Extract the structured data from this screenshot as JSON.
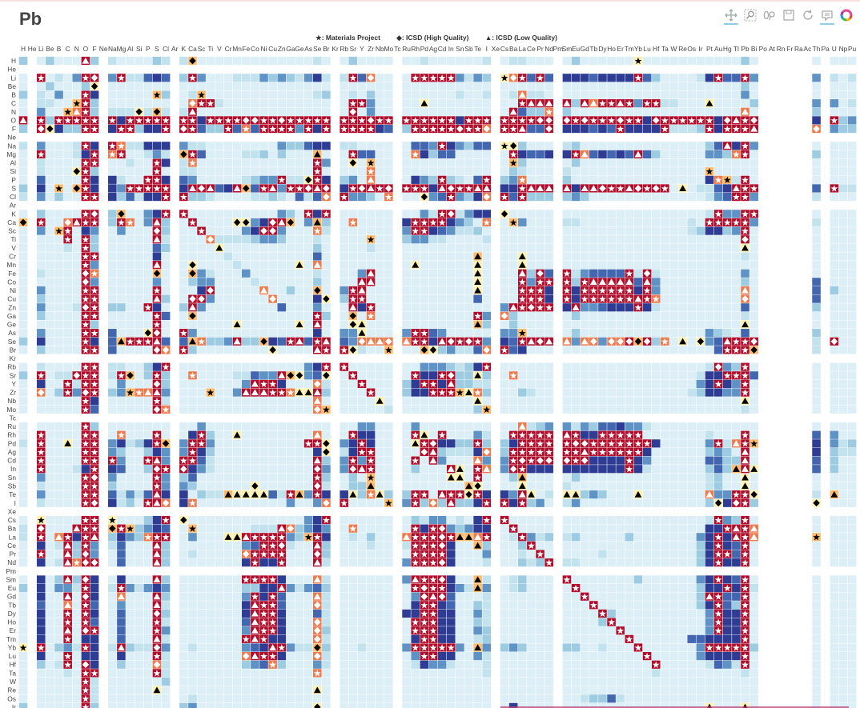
{
  "title": "Pb",
  "legend": [
    {
      "symbol": "★",
      "label": ": Materials Project"
    },
    {
      "symbol": "◆",
      "label": ": ICSD (High Quality)"
    },
    {
      "symbol": "▲",
      "label": ": ICSD (Low Quality)"
    }
  ],
  "toolbar": [
    {
      "icon": "pan-icon",
      "active": true
    },
    {
      "icon": "box-zoom-icon",
      "active": false
    },
    {
      "icon": "wheel-zoom-icon",
      "active": false
    },
    {
      "icon": "save-icon",
      "active": false
    },
    {
      "icon": "reset-icon",
      "active": false
    },
    {
      "icon": "hover-icon",
      "active": true
    },
    {
      "icon": "bokeh-logo-icon",
      "active": false
    }
  ],
  "chart_data": {
    "type": "heatmap",
    "title": "Pb",
    "x_labels": [
      "H",
      "He",
      "Li",
      "Be",
      "B",
      "C",
      "N",
      "O",
      "F",
      "Ne",
      "Na",
      "Mg",
      "Al",
      "Si",
      "P",
      "S",
      "Cl",
      "Ar",
      "K",
      "Ca",
      "Sc",
      "Ti",
      "V",
      "Cr",
      "Mn",
      "Fe",
      "Co",
      "Ni",
      "Cu",
      "Zn",
      "Ga",
      "Ge",
      "As",
      "Se",
      "Br",
      "Kr",
      "Rb",
      "Sr",
      "Y",
      "Zr",
      "Nb",
      "Mo",
      "Tc",
      "Ru",
      "Rh",
      "Pd",
      "Ag",
      "Cd",
      "In",
      "Sn",
      "Sb",
      "Te",
      "I",
      "Xe",
      "Cs",
      "Ba",
      "La",
      "Ce",
      "Pr",
      "Nd",
      "Pm",
      "Sm",
      "Eu",
      "Gd",
      "Tb",
      "Dy",
      "Ho",
      "Er",
      "Tm",
      "Yb",
      "Lu",
      "Hf",
      "Ta",
      "W",
      "Re",
      "Os",
      "Ir",
      "Pt",
      "Au",
      "Hg",
      "Tl",
      "Pb",
      "Bi",
      "Po",
      "At",
      "Rn",
      "Fr",
      "Ra",
      "Ac",
      "Th",
      "Pa",
      "U",
      "Np",
      "Pu"
    ],
    "rows": [
      {
        "label": "H",
        "cells": "c.acaaaTc. baaaacb.bX aaaaaaaaaa aaaba.acaa aa.aabaaaa aab.abbaaa .acaaaaaak aaaaaaaaaa aca......a .aaa"
      },
      {
        "label": "He",
        "cells": ""
      },
      {
        "label": "Li",
        "cells": "a.SabadSD. dSbbefe.cS daaabbbdcd cbdfb.bSep aa.aSSSSSd bdc.kpSeSe .fffeffffS ecaaaabfSe eSd......d .bab"
      },
      {
        "label": "Be",
        "cells": "a.acaaacx. aaaaaaa.aa aaaaaaaaaa aaaaa.aaaa aa.aaaaaaa aaa.aaaaaa .aaaaaaaaa aaaaaaaaaa aca......a .aaa"
      },
      {
        "label": "B",
        "cells": "c.badaaSf. aaaaaKc.ab Kaaaaaaaaa aaabc.abac aa.aaaaaab aab.abqbba .aaaaaaaaa aaaaaaaaaa ada......a .aaa"
      },
      {
        "label": "C",
        "cells": "a.bbaaKSc. aaaaaaa.ap SSbaaaaaaa aaaaa.aSSd aa.aayaaaa aaa.aaSTTT .TcTqSSTSd SSbbaaayaa aac......d .dab"
      },
      {
        "label": "N",
        "cells": "a.daaKqSc. bbbxbXb.bT aaaaaaaaaa aaaaa.aDad aa.aaaaaaa aaa.aTecco .caaaaaaaa aaaaaaaaaa aqa......c .aaa"
      },
      {
        "label": "O",
        "cells": "T.ScSSSSS. SfSSSSS.SS fSSSSDDSSD SSSSS.SSSD SS.SSSSSSf SSS.SSSSDD .DSDSSSDSS fDSSSSSSfD TSD......f .Scd"
      },
      {
        "label": "F",
        "cells": "c.DxfccSS. fSScffS.DS eccSeoeSSS SdSfS.SSSS fe.cSSSSSD SSp.SSTeeD .fffefeSff ffSbbbcSfS SST......p .dcc"
      },
      {
        "label": "Ne",
        "cells": ""
      },
      {
        "label": "Na",
        "cells": "b.daaabSf. Sobbfff.db baaaaaaaad cceff.bbaa aa.aeedSfd cee.kxcaaa .bcaaaaaaa aaaaaaaceT fSd......a .aaa"
      },
      {
        "label": "Mg",
        "cells": "a.SaaabfS. oSaabdb.XS eaaaabbcac aaaYa.aSee aa.aofceea aaa.aSfeef .fSqefefeT ecaaaaaddc oSa......c .aaa"
      },
      {
        "label": "Al",
        "cells": "a.baaaaSS. aabaaSf.bo aaaaaaaaaa aaaSd.axaK aa.aaaaaaa aaa.aKcaaa .acaaaaaaa aaaaaaaaaa aaa......a .aaa"
      },
      {
        "label": "Si",
        "cells": "a.baaaxSc. aaaaaSa.bb aaaaaaaaaa aaaSa.aaao aa.aaaaaaa aaa.acbaaa .baaaaaaaa aaaaaaaKaa aaa......a .aaa"
      },
      {
        "label": "P",
        "cells": "a.eaaaaSf. fbaaSSf.ed aaaaabcddS bbxSf.cdaq aa.afdcScb aeS.cdoaaa .caaaaaaaa aaaaaaafoK bSa......a .aaa"
      },
      {
        "label": "S",
        "cells": "c.faKaXSf. fdSSSSS.fT DTefTXeSTd SSDTD.fSDT SD.SSSfTDS STT.ffSTTT .TfTTDSSTD SDSayabbef TSS......e .Sbb"
      },
      {
        "label": "Cl",
        "cells": "b.dacaaSS. fcebffS.Sc cbaaaabbcb aebep.Sddc ao.aaxdeSd cfp.SeSccc .cdcaaaaaa aaaaaaabde SSd......b .aaa"
      },
      {
        "label": "Ar",
        "cells": ""
      },
      {
        "label": "K",
        "cells": "a.caaaaSD. cXaadfS.Sa aaaaaaaaad caSfS.aaaa aa.aadbSDb dff.xaaaaa .aaaaaaaaa aaaaaaabSd dSS......a .aaa"
      },
      {
        "label": "Ca",
        "cells": "X.SaapTSS. cSoadTc.aS aaaaxxdfDT XadYc.aoaa aa.fSSSSfd cao.aKdaaa .bbaaaaaaa aaaaabaSSS SSd......b .aaa"
      },
      {
        "label": "Sc",
        "cells": "a.daKSafd. adaaaDc.aa SaaaadfDDd aaaob.aaaa aa.dSSfedb bca.aaaaaa .aaaaaaaaa aaaaabcffc dSa......a .aaa"
      },
      {
        "label": "Ti",
        "cells": "a.aaaSaSc. aaaaaTb.aa apbbbbcddc aaaba.aaaK aa.cddbbaa aab.aaaaaa .aaaaaaaaa aaaaaaaaaa aDa......a .aaa"
      },
      {
        "label": "V",
        "cells": "a.aaabaSc. aaaaaec.aa aayaaaaaaa aaaca.aaab aa.aaaaaaa aaa.aaaaaa .aaaaaaaaa aaaaaaaaaa aya......a .aaa"
      },
      {
        "label": "Cr",
        "cells": "a.aaaaaSS. aaaaafa.aa aaabaaaaaa aaaea.aaaa aa.aaaaaaa aYa.aayaaa .aaaaaaaaa aaaaaaaaaa aba......a .aaa"
      },
      {
        "label": "Mn",
        "cells": "a.aaaaaSd. aaaaaTa.ax aaaabaaaaa ayaqa.aaaa aa.ayaaaaa aya.aayaaa .aaaaaaaaa aaaaaaaaaa aaa......a .aaa"
      },
      {
        "label": "Fe",
        "cells": "a.baaaaDo. aaaaaXa.aX dbaaadaaaa aaaba.aadT aa.aaaaaaa aya.aaTcDe .SbdeeeeSb Dbaaaaaaaa ada......a .aaa"
      },
      {
        "label": "Co",
        "cells": "a.aaaaaDd. aaaaada.ac ddaaaabaaa aaaca.aaTT aa.aaaaaaa aya.aaSdSS .ScSTTTTTe Tdaaaaaaaa aca......e .aaa"
      },
      {
        "label": "Ni",
        "cells": "a.daaaaSS. aaaaaSa.aa fDaaaaaqaa caaXa.dSTa aa.aaaaaaa aya.aaSSSf .SfSSSSSSf Sdaaaaaaaa aqa......e .caa"
      },
      {
        "label": "Cu",
        "cells": "a.caaaaSS. aaaaaTc.aD Ddaaaaaapa aaafx.cSSa aa.aaaaaaa aea.aaSSSf .SfSSSSSST Soaaaaaaaa apa......e .aaa"
      },
      {
        "label": "Zn",
        "cells": "a.daaabDS. ccaaSfa.cT daaaaaaaae aaada.aTfS aa.aaaaaaa aaa.dTSDSS .fTddefffS fbaaaaaaaa aea......c .aaa"
      },
      {
        "label": "Ga",
        "cells": "a.caaaaSS. aaaaaSe.aX aaaaaaaaaa aaaSc.aXao aa.aaaaaaa aSd.pcaaaa .acaaaaaaa aaaaaaaaaa aba......a .aaa"
      },
      {
        "label": "Ge",
        "cells": "a.aaaaaSc. aaaaaSa.aa aaaayaaaaa ayaTa.axya aa.aaaaaaa aYc.acaaaa .aaaaaaaaa aaaaaaaaaa aya......a .aaa"
      },
      {
        "label": "As",
        "cells": "a.daaaaSS. eaaaxDa.Sd aaaaaaaaaa aaafa.ddya aa.dSSedaa aaa.ddKaaa .acaaaaaaa aaaaaaadcb aea......c .aaa"
      },
      {
        "label": "Se",
        "cells": "c.faaaaSf. eYSSSTe.eY occdTccXfe STeST.edpq qp.qSSfTDS DSd.feSTDT .qdqpdppDX DcoayaxdeT SSD......b .Daa"
      },
      {
        "label": "Br",
        "cells": "a.caaaaSS. eaaaaDp.Sc aaaaaaaaxa aaaTS.Sxba aK.aaXxcdb bep.Sefaaa .aaaaaaaaa aaaaaaaaeS SSX......b .aaa"
      },
      {
        "label": "Kr",
        "cells": ""
      },
      {
        "label": "Rb",
        "cells": "a.baaaaSS. bbaacfS.aa aaaaaaaaaa aadfS.Saaa aa.aadddcb cfS.aaaaaa .aaaaaaaaa aaaaaaabDd cSa......a .aaa"
      },
      {
        "label": "Sr",
        "cells": "c.SabbDSS. bSXacSc.ao aaaabbeddT Xxdex.aSaa aa.aSffSDc cyc.aoaaaa .aaaaaaaaa aaaaaabffS SSe......a .aaa"
      },
      {
        "label": "Y",
        "cells": "a.faaSbSS. adaaaDc.aa aaaaadTSSf aaapb.aaSa aa.cfSSfTc cbb.aaaaaa .aaaaaaaaa aaaaaadfSf dSa......a .aaa"
      },
      {
        "label": "Zr",
        "cells": "a.pacSdDS. cdKoqTd.aa aKaadTTTSS oyyTc.aaaS aa.cffSSSK yoc.aacbaa .aaaaaaaaa aaaaabcffd dSa......a .aaa"
      },
      {
        "label": "Nb",
        "cells": "a.aaaaaSf. aaaaaSb.aa aaaaaaaaaa aaaqa.aaaa ya.aaaaaaa aya.aaaaaa .aaaaaaaaa aaaaaaaaaa aya......a .aaa"
      },
      {
        "label": "Mo",
        "cells": "a.aaaaaSe. aaaaaDo.aa aaaaaaaaaa aaapK.aaaa ab.aaaaaaa acK.aaaaaa .aaaaaaaaa aaaaaaaaaa aba......a .aaa"
      },
      {
        "label": "Tc",
        "cells": ""
      },
      {
        "label": "Ru",
        "cells": "a.aaaaaSc. aaaaaaa.aa daaaaaaaaa aaaaa.aadd aa.adaaaaa aaa.aaqbcd .dbdceefdd baaaaaaaaa aaa......a .aaa"
      },
      {
        "label": "Rh",
        "cells": "a.SaaaaSS. aoaaaSa.af Scaayaaaaa aaaqa.aSff aa.aSyaSaa adb.aSSSSS .TSffSSSSS aaaaaaabaa aSa......e .daa"
      },
      {
        "label": "Pd",
        "cells": "b.SaayaSS. dfbcfSX.dS Sdaaaaaaaa aaSSx.dfSf aa.aySDffc cSc.cfSSSS .SDDSSSSSS SfaaaaadSb qSK......f .dbc"
      },
      {
        "label": "Ag",
        "cells": "a.SaaaaSS. dcaacfd.dS fcaaaaaaaa aaafx.bfSS aa.aaDTcbb bfp.cSSSSS .SSTSSSSSS faaaaaacdc aTa......f .cbb"
      },
      {
        "label": "Cd",
        "cells": "a.SaaaaSS. SdaaSTd.SS ebaaaaaaaa aaaTc.dSdS aa.aSaTdaa aqd.dSDSDD .DSDffffSf daaaaaaeec cTa......e .caa"
      },
      {
        "label": "In",
        "cells": "a.SaaabfS. feaacDS.Df dbaaaaaaaa aaaDd.dDTS aa.acaaaTy aSq.dDSfff .fffffffSf baaaaaacec YTy......e .caa"
      },
      {
        "label": "Sn",
        "cells": "a.daaaaSD. daaaaSd.ce aaaaaaaaaa aaaSc.acaK aa.aaaaayy aSa.acYaaa .acaaaaaaa aaaaaaabca aya......a .aaa"
      },
      {
        "label": "Sb",
        "cells": "a.baaaaSS. caaaaSd.dc aaaaaaxaaa aaaDb.accY aa.aaaaaaa Yxa.aayaaa .baaaaaaaa aaaaaaabca aya......a .aaa"
      },
      {
        "label": "Te",
        "cells": "a.daaaaSS. ebdbeTf.fa cbbYyyyyeb SYdSf.fyco yc.cSSaTSS xSf.fdTyab .yycdcaaay aaaaaaaqdd SSx......b .Yaa"
      },
      {
        "label": "I",
        "cells": "a.baaaaSD. fbcaSTp.fo aaaaaaaaaa daadp.Saaa aK.dScpcTc cfS.SfScda .bdaaaaaaa aaaaaaacxf DSc......x .aaa"
      },
      {
        "label": "Xe",
        "cells": ""
      },
      {
        "label": "Cs",
        "cells": "a.kaaaaSS. kaaacfS.xa aaaaaaaaaa aadfS.aaaa aa.acbddab afS.Saaaaa .aaaaaaaaa aaaaaaabSd cSa......a .aaa"
      },
      {
        "label": "Ba",
        "cells": "b.DaaaTSS. XSKcdfe.aK aaaaaabbbT pcdfd.aoaa aa.aSfSDdc dff.aSaaaa .aaaaaaaaa aaaaaaaffS TSq......a .aaa"
      },
      {
        "label": "La",
        "cells": "b.SaqSfST. cfdcoSS.ad aaayyTSSSS dcKSf.abac aa.qSSSDSY YqS.abSdbc .bcaaaaaca aaaaaadfSf TSq......K .aaa"
      },
      {
        "label": "Ce",
        "cells": "a.fabTcSd. beaaaTc.aa aaaaadeSSD baaTc.aaab aa.bSSSDfa aYc.aacSaa .aaaaaaaaa aaaaaacfSf eSa......a .aaa"
      },
      {
        "label": "Pr",
        "cells": "a.SaaTcDd. aeaaaTc.ab aaaaapSSSS aaaDc.aaaa aa.aSSSSfa aad.aabaSa .aaaabaaaa aaaaaacfSS eSa......a .aaa"
      },
      {
        "label": "Nd",
        "cells": "a.fabToDD. aeaaaTc.aa aaaaafSffS aaaTb.aaaa aa.dSSSDfa aab.aacbcS .bbaaaaaaa aaaaaacfSf fSa......a .aaa"
      },
      {
        "label": "Pm",
        "cells": ""
      },
      {
        "label": "Sm",
        "cells": "a.facTcDf. afaaaTc.aa aaaaaSSSSf aaaqb.aaaa aa.dTSSDfa aYb.abcaaa .Saaaaaaac aaaaaadfSf eSa......a .aaa"
      },
      {
        "label": "Eu",
        "cells": "c.faddbSf. bSdbdfd.aa aaaaaccffT dbdec.aaaa aa.aSDSSfd bYd.abcaaa .aSaaaaaaa aaaaaacffS fSb......a .aaa"
      },
      {
        "label": "Gd",
        "cells": "a.faaTaDf. aqaaaTc.aa aaaaadSfSe aaaqb.aaaa aa.adDTDea aab.aaaaaa .aaSaaaaaa aaaaaacTSe eSa......a .aaa"
      },
      {
        "label": "Tb",
        "cells": "a.eaaqaSe. adaaaTb.aa aaaaafTSSe aaapb.aaaa aa.afSSfea acb.aaaaaa .aaaSaaaaa aaaaaacfSe cSa......a .aaa"
      },
      {
        "label": "Dy",
        "cells": "a.faaSaSf. aeaaaDc.aa aaaaafTSSf aaaeb.aaaa aa.ffSSffa adb.aaaaaa .aaaaScaaa aaaaaaadSf fSa......a .aaa"
      },
      {
        "label": "Ho",
        "cells": "a.faaSaSe. aeaaaSb.aa aaaaaeTSSf aaapb.aaaa aa.aSSSffa acb.aaaaaa .aaaacSaaa aaaaaaadSf fSa......a .aaa"
      },
      {
        "label": "Er",
        "cells": "a.faaTaDS. aeaaaSd.aa aaaaadTSSf aaapc.aaaa aa.aSSSffa adc.aaaaaa .aaaaaaSaa aaaaaaadSf fSa......a .aaa"
      },
      {
        "label": "Tm",
        "cells": "a.faaSaff. aeaaaTb.aa aaaaaSTSff aaapb.aaaa aa.afSSffa abc.aaaaaa .aaaaaaaSa aaaaaeefff fSa......a .aaa"
      },
      {
        "label": "Yb",
        "cells": "k.SacdbSf. bTcbbDd.ab aaaaadefTS dbbXc.aaba aa.dSSSSSd aYd.cdcaaa .ccaabaaaS aaaaaadSSS SSc......a .aaa"
      },
      {
        "label": "Lu",
        "cells": "a.faaSaff. afaaaSb.aa aaaaapTSSf aaapb.aaaa aa.adSSffa adb.aaaaaa .aaaaaaaaa Saaaaadfff fSa......a .aaa"
      },
      {
        "label": "Hf",
        "cells": "a.cabSaDf. acaaapb.aa aaaaacdeoc aaadb.aaaa aa.abfddba aab.aaaaaa .aaaaaaaaa aSaaaaabed bSa......a .aaa"
      },
      {
        "label": "Ta",
        "cells": "a.aaabaSS. aaaaaSb.aa aaaaaaaaaa aaaoa.aaaa aa.aaaaaaa aab.aaaaaa .aaaaaaaaa abaaaaaaaa aba......a .aaa"
      },
      {
        "label": "W",
        "cells": "a.aaaaaSb. aaaaaac.aa aaaaaaaaaa aaaaa.aaaa aa.aaaaaaa aaa.aaaaaa .aaaaaaaaa aaaaaaaaaa aaa......a .aaa"
      },
      {
        "label": "Re",
        "cells": "a.aaaaaSb. aaaaaya.aa aaaaaaaaaa aaaya.aaaa aa.aaaaaaa aaa.aaaaaa .aaaaaaaaa aaaaaaaaaa aaa......a .aaa"
      },
      {
        "label": "Os",
        "cells": "a.aaaaaSb. aaaaaaa.ab aaaaaaaaaa aaaaa.aaaa aa.aaaaaaa aaa.aaaaaa .aabccebaa aaaaaaaaaa aaa......a .aaa"
      },
      {
        "label": "Ir",
        "cells": "c.aaaaaSc. aaaaaaa.cd aaaaaaaaaa aaaxa.aaaa aa.aaaaaaa aaa.afaaaa .aaaaaaaaa aaaaaaayaa aya......a .aaa"
      }
    ],
    "legend_placement": "top-center",
    "grid": false
  }
}
